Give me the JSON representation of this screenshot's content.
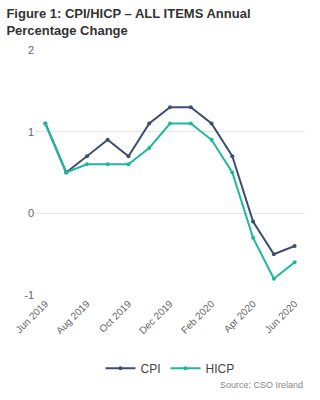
{
  "chart_data": {
    "type": "line",
    "title": "Figure 1: CPI/HICP – ALL ITEMS Annual Percentage Change",
    "source": "Source: CSO Ireland",
    "categories": [
      "Jun 2019",
      null,
      "Aug 2019",
      null,
      "Oct 2019",
      null,
      "Dec 2019",
      null,
      "Feb 2020",
      null,
      "Apr 2020",
      null,
      "Jun 2020"
    ],
    "series": [
      {
        "name": "CPI",
        "color": "#3d4e70",
        "marker": "circle",
        "values": [
          1.1,
          0.5,
          0.7,
          0.9,
          0.7,
          1.1,
          1.3,
          1.3,
          1.1,
          0.7,
          -0.1,
          -0.5,
          -0.4
        ]
      },
      {
        "name": "HICP",
        "color": "#1db99b",
        "marker": "circle",
        "values": [
          1.1,
          0.5,
          0.6,
          0.6,
          0.6,
          0.8,
          1.1,
          1.1,
          0.9,
          0.5,
          -0.3,
          -0.8,
          -0.6
        ]
      }
    ],
    "ylim": [
      -1,
      2
    ],
    "yticks": [
      -1,
      0,
      1,
      2
    ],
    "grid": true,
    "legend": "bottom"
  }
}
